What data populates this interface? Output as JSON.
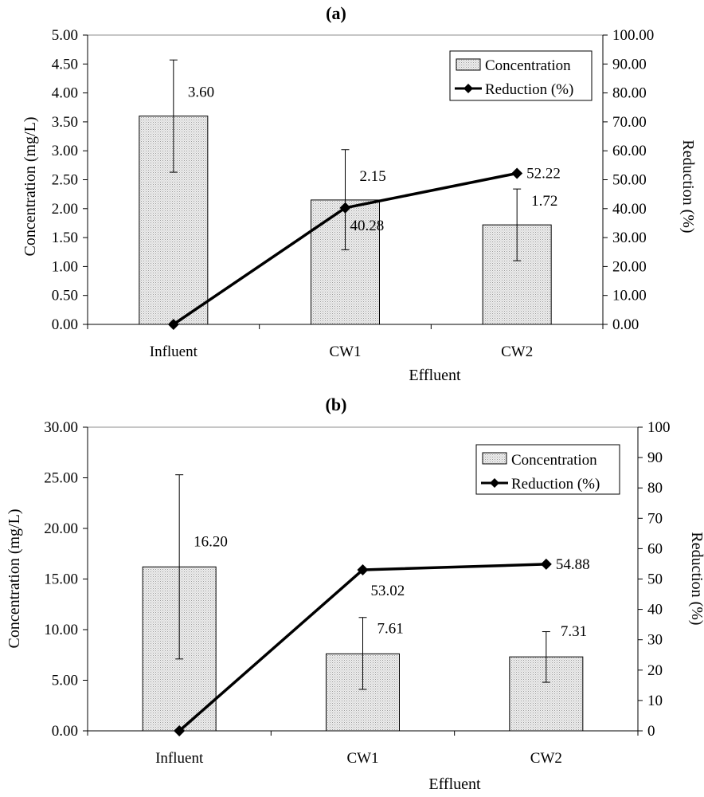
{
  "chart_data": [
    {
      "type": "bar",
      "panel_label": "(a)",
      "title": "(a)",
      "xlabel": "Effluent",
      "ylabel": "Concentration (mg/L)",
      "y2label": "Reduction (%)",
      "categories": [
        "Influent",
        "CW1",
        "CW2"
      ],
      "ylim": [
        0,
        5
      ],
      "y2lim": [
        0,
        100
      ],
      "yticks": [
        "0.00",
        "0.50",
        "1.00",
        "1.50",
        "2.00",
        "2.50",
        "3.00",
        "3.50",
        "4.00",
        "4.50",
        "5.00"
      ],
      "y2ticks": [
        "0.00",
        "10.00",
        "20.00",
        "30.00",
        "40.00",
        "50.00",
        "60.00",
        "70.00",
        "80.00",
        "90.00",
        "100.00"
      ],
      "series": [
        {
          "name": "Concentration",
          "kind": "bar",
          "axis": "left",
          "values": [
            3.6,
            2.15,
            1.72
          ],
          "labels": [
            "3.60",
            "2.15",
            "1.72"
          ],
          "error_low": [
            2.63,
            1.29,
            1.1
          ],
          "error_high": [
            4.57,
            3.02,
            2.34
          ]
        },
        {
          "name": "Reduction (%)",
          "kind": "line",
          "axis": "right",
          "values": [
            0,
            40.28,
            52.22
          ],
          "labels": [
            "",
            "40.28",
            "52.22"
          ]
        }
      ],
      "legend_position": "top-right",
      "grid": false
    },
    {
      "type": "bar",
      "panel_label": "(b)",
      "title": "(b)",
      "xlabel": "Effluent",
      "ylabel": "Concentration (mg/L)",
      "y2label": "Reduction (%)",
      "categories": [
        "Influent",
        "CW1",
        "CW2"
      ],
      "ylim": [
        0,
        30
      ],
      "y2lim": [
        0,
        100
      ],
      "yticks": [
        "0.00",
        "5.00",
        "10.00",
        "15.00",
        "20.00",
        "25.00",
        "30.00"
      ],
      "y2ticks": [
        "0",
        "10",
        "20",
        "30",
        "40",
        "50",
        "60",
        "70",
        "80",
        "90",
        "100"
      ],
      "series": [
        {
          "name": "Concentration",
          "kind": "bar",
          "axis": "left",
          "values": [
            16.2,
            7.61,
            7.31
          ],
          "labels": [
            "16.20",
            "7.61",
            "7.31"
          ],
          "error_low": [
            7.1,
            4.1,
            4.8
          ],
          "error_high": [
            25.3,
            11.2,
            9.8
          ]
        },
        {
          "name": "Reduction (%)",
          "kind": "line",
          "axis": "right",
          "values": [
            0,
            53.02,
            54.88
          ],
          "labels": [
            "",
            "53.02",
            "54.88"
          ]
        }
      ],
      "legend_position": "top-right",
      "grid": false
    }
  ]
}
